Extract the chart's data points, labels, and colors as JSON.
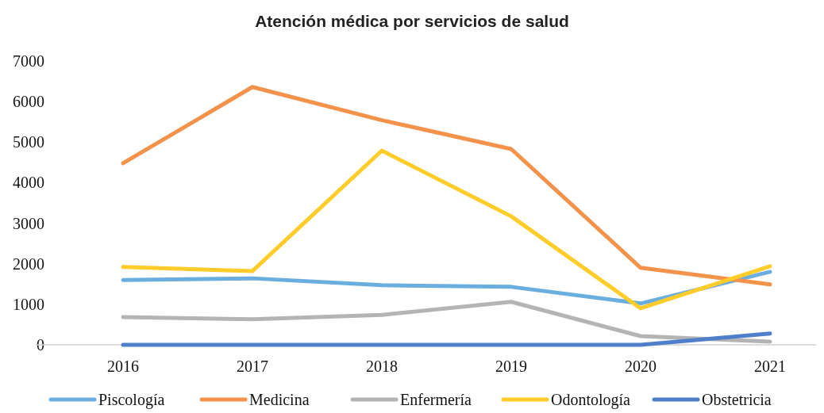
{
  "chart_data": {
    "type": "line",
    "title": "Atención médica por servicios de salud",
    "categories": [
      "2016",
      "2017",
      "2018",
      "2019",
      "2020",
      "2021"
    ],
    "series": [
      {
        "name": "Piscología",
        "color": "#6aaee0",
        "values": [
          1600,
          1640,
          1470,
          1430,
          1020,
          1800
        ]
      },
      {
        "name": "Medicina",
        "color": "#f3924a",
        "values": [
          4480,
          6360,
          5540,
          4830,
          1900,
          1490
        ]
      },
      {
        "name": "Enfermería",
        "color": "#b4b4b4",
        "values": [
          685,
          630,
          740,
          1060,
          215,
          80
        ]
      },
      {
        "name": "Odontología",
        "color": "#ffcc2a",
        "values": [
          1920,
          1820,
          4790,
          3170,
          900,
          1940
        ]
      },
      {
        "name": "Obstetricia",
        "color": "#4f7fca",
        "values": [
          0,
          0,
          0,
          0,
          0,
          280
        ]
      }
    ],
    "ylim": [
      0,
      7000
    ],
    "yticks": [
      0,
      1000,
      2000,
      3000,
      4000,
      5000,
      6000,
      7000
    ],
    "grid": false,
    "legend": "bottom",
    "marker": "none",
    "line_style": "solid"
  }
}
